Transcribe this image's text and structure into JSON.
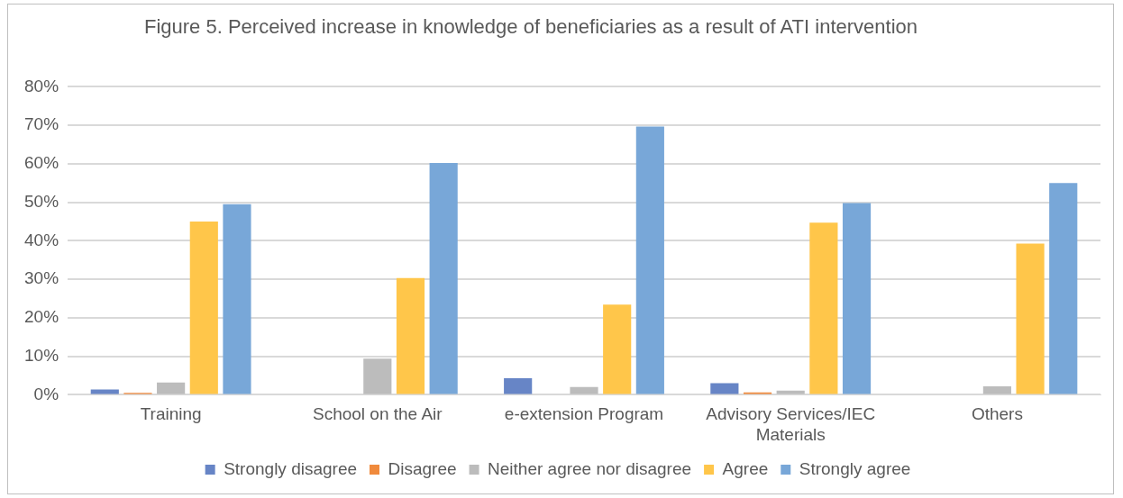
{
  "chart_data": {
    "type": "bar",
    "title": "Figure 5. Perceived increase in knowledge of beneficiaries as a result of ATI intervention",
    "categories": [
      "Training",
      "School on the Air",
      "e-extension Program",
      "Advisory Services/IEC Materials",
      "Others"
    ],
    "series": [
      {
        "name": "Strongly disagree",
        "color": "#6785c6",
        "values": [
          1.4,
          null,
          4.3,
          3.0,
          null
        ]
      },
      {
        "name": "Disagree",
        "color": "#f08a3c",
        "values": [
          0.5,
          null,
          null,
          0.6,
          null
        ]
      },
      {
        "name": "Neither agree nor disagree",
        "color": "#bcbcbc",
        "values": [
          3.2,
          9.4,
          2.0,
          1.1,
          2.2
        ]
      },
      {
        "name": "Agree",
        "color": "#ffc64a",
        "values": [
          45.0,
          30.3,
          23.4,
          44.7,
          39.3
        ]
      },
      {
        "name": "Strongly agree",
        "color": "#78a7d8",
        "values": [
          49.5,
          60.2,
          69.7,
          49.8,
          55.0
        ]
      }
    ],
    "ylim": [
      0,
      80
    ],
    "yticks": [
      {
        "value": 0,
        "label": "0%"
      },
      {
        "value": 10,
        "label": "10%"
      },
      {
        "value": 20,
        "label": "20%"
      },
      {
        "value": 30,
        "label": "30%"
      },
      {
        "value": 40,
        "label": "40%"
      },
      {
        "value": 50,
        "label": "50%"
      },
      {
        "value": 60,
        "label": "60%"
      },
      {
        "value": 70,
        "label": "70%"
      },
      {
        "value": 80,
        "label": "80%"
      }
    ],
    "grid": "y",
    "legend": "bottom"
  }
}
